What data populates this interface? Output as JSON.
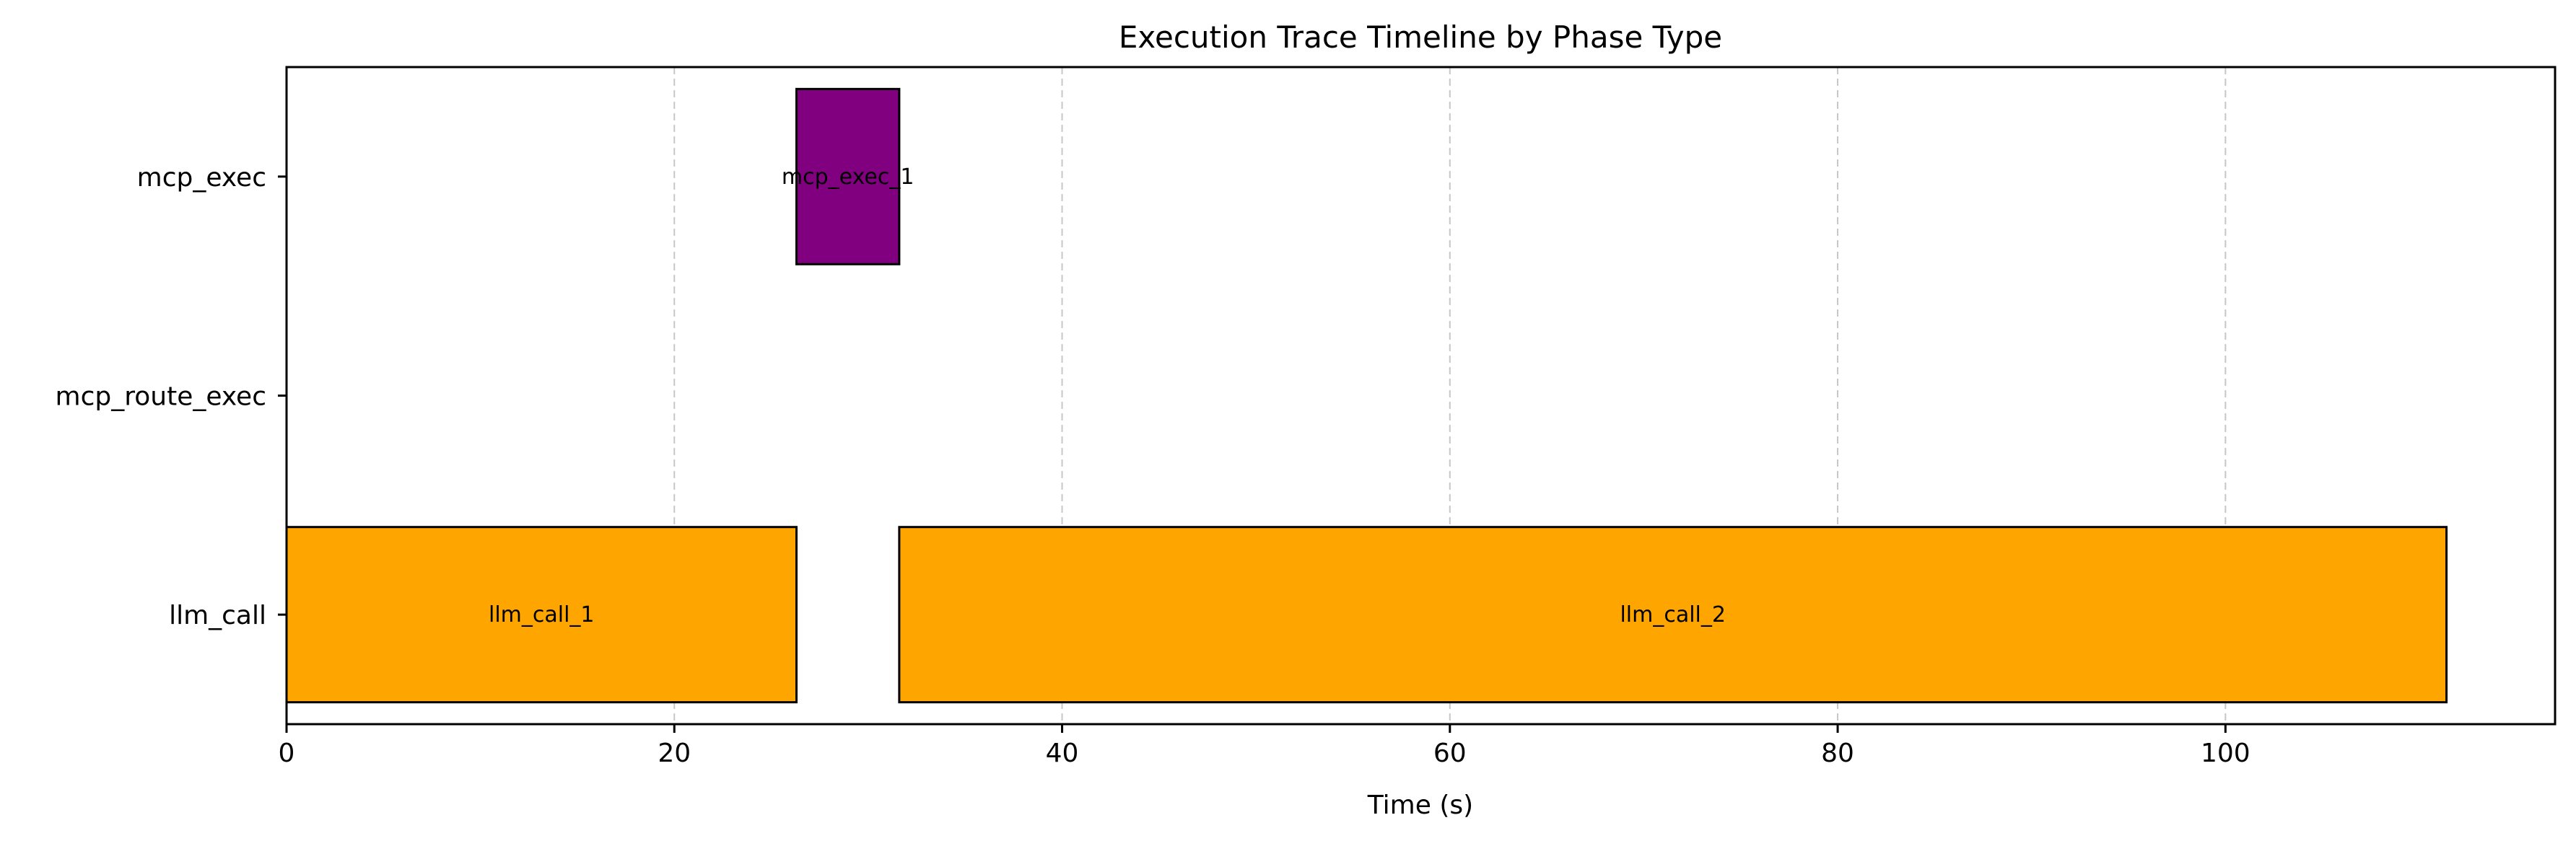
{
  "chart_data": {
    "type": "bar",
    "orientation": "horizontal-timeline",
    "title": "Execution Trace Timeline by Phase Type",
    "xlabel": "Time (s)",
    "ylabel": "",
    "xlim": [
      0,
      117
    ],
    "x_ticks": [
      0,
      20,
      40,
      60,
      80,
      100
    ],
    "x_tick_labels": [
      "0",
      "20",
      "40",
      "60",
      "80",
      "100"
    ],
    "grid": "x-dashed",
    "categories": [
      "mcp_exec",
      "mcp_route_exec",
      "llm_call"
    ],
    "segments": [
      {
        "label": "llm_call_1",
        "category": "llm_call",
        "start": 0,
        "end": 26.3,
        "color": "#FFA500"
      },
      {
        "label": "mcp_exec_1",
        "category": "mcp_exec",
        "start": 26.3,
        "end": 31.6,
        "color": "#800080"
      },
      {
        "label": "llm_call_2",
        "category": "llm_call",
        "start": 31.6,
        "end": 111.4,
        "color": "#FFA500"
      }
    ]
  }
}
